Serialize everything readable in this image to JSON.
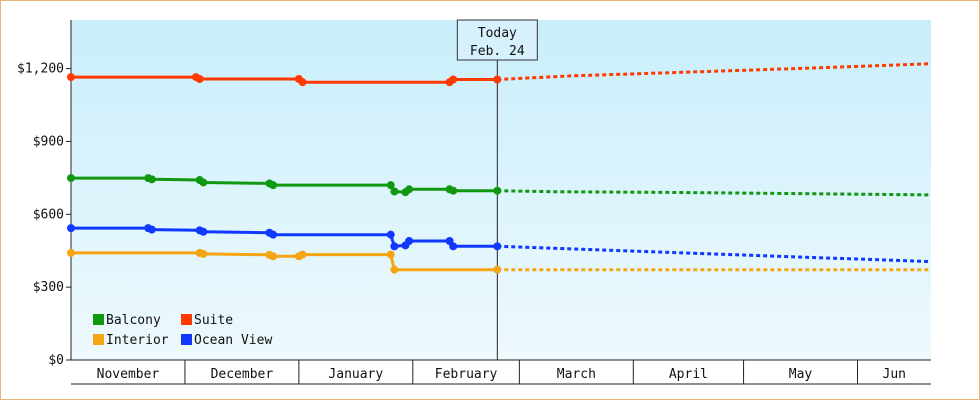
{
  "chart_data": {
    "type": "line",
    "xlabel": "",
    "ylabel": "",
    "ylim": [
      0,
      1400
    ],
    "y_ticks": [
      {
        "value": 0,
        "label": "$0"
      },
      {
        "value": 300,
        "label": "$300"
      },
      {
        "value": 600,
        "label": "$600"
      },
      {
        "value": 900,
        "label": "$900"
      },
      {
        "value": 1200,
        "label": "$1,200"
      }
    ],
    "x_range": [
      "2023-10-31",
      "2024-06-21"
    ],
    "months": [
      {
        "label": "November",
        "start": "2023-10-31",
        "end": "2023-12-01"
      },
      {
        "label": "December",
        "start": "2023-12-01",
        "end": "2024-01-01"
      },
      {
        "label": "January",
        "start": "2024-01-01",
        "end": "2024-02-01"
      },
      {
        "label": "February",
        "start": "2024-02-01",
        "end": "2024-03-01"
      },
      {
        "label": "March",
        "start": "2024-03-01",
        "end": "2024-04-01"
      },
      {
        "label": "April",
        "start": "2024-04-01",
        "end": "2024-05-01"
      },
      {
        "label": "May",
        "start": "2024-05-01",
        "end": "2024-06-01"
      },
      {
        "label": "Jun",
        "start": "2024-06-01",
        "end": "2024-06-21"
      }
    ],
    "today": {
      "line1": "Today",
      "line2": "Feb. 24",
      "date": "2024-02-24"
    },
    "grid": false,
    "legend_position": "bottom-left",
    "series": [
      {
        "name": "Balcony",
        "color": "#109910",
        "history": [
          {
            "x": "2023-10-31",
            "y": 749
          },
          {
            "x": "2023-11-21",
            "y": 749
          },
          {
            "x": "2023-11-22",
            "y": 744
          },
          {
            "x": "2023-12-05",
            "y": 741
          },
          {
            "x": "2023-12-06",
            "y": 731
          },
          {
            "x": "2023-12-24",
            "y": 727
          },
          {
            "x": "2023-12-25",
            "y": 720
          },
          {
            "x": "2024-01-26",
            "y": 720
          },
          {
            "x": "2024-01-27",
            "y": 694
          },
          {
            "x": "2024-01-30",
            "y": 691
          },
          {
            "x": "2024-01-31",
            "y": 703
          },
          {
            "x": "2024-02-11",
            "y": 703
          },
          {
            "x": "2024-02-12",
            "y": 697
          },
          {
            "x": "2024-02-24",
            "y": 697
          }
        ],
        "forecast": [
          {
            "x": "2024-02-24",
            "y": 697
          },
          {
            "x": "2024-03-10",
            "y": 693
          },
          {
            "x": "2024-04-10",
            "y": 690
          },
          {
            "x": "2024-05-10",
            "y": 686
          },
          {
            "x": "2024-06-21",
            "y": 680
          }
        ]
      },
      {
        "name": "Suite",
        "color": "#ff3a00",
        "history": [
          {
            "x": "2023-10-31",
            "y": 1165
          },
          {
            "x": "2023-12-04",
            "y": 1165
          },
          {
            "x": "2023-12-05",
            "y": 1157
          },
          {
            "x": "2024-01-01",
            "y": 1157
          },
          {
            "x": "2024-01-02",
            "y": 1144
          },
          {
            "x": "2024-02-11",
            "y": 1144
          },
          {
            "x": "2024-02-12",
            "y": 1155
          },
          {
            "x": "2024-02-24",
            "y": 1155
          }
        ],
        "forecast": [
          {
            "x": "2024-02-24",
            "y": 1155
          },
          {
            "x": "2024-03-15",
            "y": 1170
          },
          {
            "x": "2024-04-15",
            "y": 1185
          },
          {
            "x": "2024-05-15",
            "y": 1200
          },
          {
            "x": "2024-06-21",
            "y": 1220
          }
        ]
      },
      {
        "name": "Interior",
        "color": "#f5a511",
        "history": [
          {
            "x": "2023-10-31",
            "y": 441
          },
          {
            "x": "2023-12-05",
            "y": 441
          },
          {
            "x": "2023-12-06",
            "y": 437
          },
          {
            "x": "2023-12-24",
            "y": 433
          },
          {
            "x": "2023-12-25",
            "y": 427
          },
          {
            "x": "2024-01-01",
            "y": 427
          },
          {
            "x": "2024-01-02",
            "y": 434
          },
          {
            "x": "2024-01-26",
            "y": 434
          },
          {
            "x": "2024-01-27",
            "y": 372
          },
          {
            "x": "2024-02-24",
            "y": 372
          }
        ],
        "forecast": [
          {
            "x": "2024-02-24",
            "y": 372
          },
          {
            "x": "2024-06-21",
            "y": 372
          }
        ]
      },
      {
        "name": "Ocean View",
        "color": "#1038ff",
        "history": [
          {
            "x": "2023-10-31",
            "y": 543
          },
          {
            "x": "2023-11-21",
            "y": 543
          },
          {
            "x": "2023-11-22",
            "y": 537
          },
          {
            "x": "2023-12-05",
            "y": 534
          },
          {
            "x": "2023-12-06",
            "y": 528
          },
          {
            "x": "2023-12-24",
            "y": 524
          },
          {
            "x": "2023-12-25",
            "y": 516
          },
          {
            "x": "2024-01-26",
            "y": 516
          },
          {
            "x": "2024-01-27",
            "y": 468
          },
          {
            "x": "2024-01-30",
            "y": 472
          },
          {
            "x": "2024-01-31",
            "y": 490
          },
          {
            "x": "2024-02-11",
            "y": 490
          },
          {
            "x": "2024-02-12",
            "y": 468
          },
          {
            "x": "2024-02-24",
            "y": 468
          }
        ],
        "forecast": [
          {
            "x": "2024-02-24",
            "y": 468
          },
          {
            "x": "2024-03-20",
            "y": 455
          },
          {
            "x": "2024-04-20",
            "y": 438
          },
          {
            "x": "2024-05-20",
            "y": 422
          },
          {
            "x": "2024-06-21",
            "y": 405
          }
        ]
      }
    ]
  }
}
